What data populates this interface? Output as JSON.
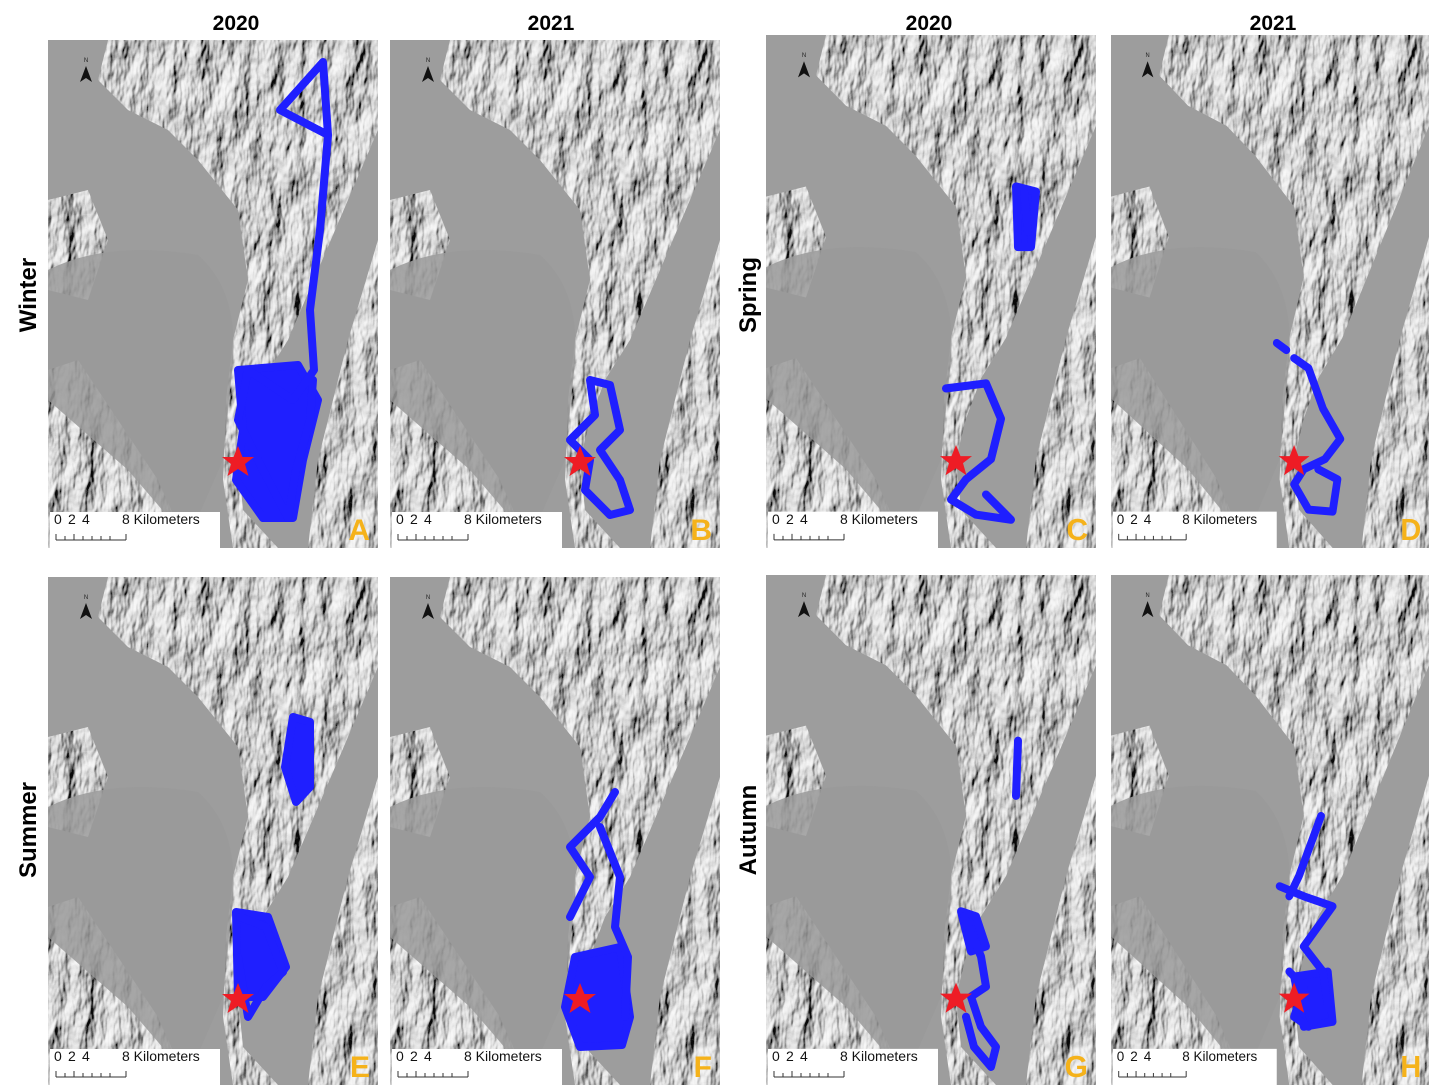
{
  "column_headers": [
    "2020",
    "2021",
    "2020",
    "2021"
  ],
  "rows": [
    {
      "label": "Winter"
    },
    {
      "label": "Spring"
    },
    {
      "label": "Summer"
    },
    {
      "label": "Autumn"
    }
  ],
  "panels": [
    {
      "letter": "A"
    },
    {
      "letter": "B"
    },
    {
      "letter": "C"
    },
    {
      "letter": "D"
    },
    {
      "letter": "E"
    },
    {
      "letter": "F"
    },
    {
      "letter": "G"
    },
    {
      "letter": "H"
    }
  ],
  "scale_bar": {
    "labels": [
      "0",
      "2",
      "4",
      "8 Kilometers"
    ]
  },
  "north_arrow": "N"
}
